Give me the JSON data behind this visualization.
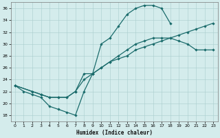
{
  "xlabel": "Humidex (Indice chaleur)",
  "bg_color": "#d4ecec",
  "line_color": "#1a6b6b",
  "xlim": [
    -0.5,
    23.5
  ],
  "ylim": [
    17,
    37
  ],
  "xticks": [
    0,
    1,
    2,
    3,
    4,
    5,
    6,
    7,
    8,
    9,
    10,
    11,
    12,
    13,
    14,
    15,
    16,
    17,
    18,
    19,
    20,
    21,
    22,
    23
  ],
  "yticks": [
    18,
    20,
    22,
    24,
    26,
    28,
    30,
    32,
    34,
    36
  ],
  "curve1_x": [
    0,
    1,
    2,
    3,
    4,
    5,
    6,
    7,
    8,
    9,
    10,
    11,
    12,
    13,
    14,
    15,
    16,
    17,
    18
  ],
  "curve1_y": [
    23,
    22,
    21.5,
    21,
    19.5,
    19,
    18.5,
    18,
    22,
    25,
    30,
    31,
    33,
    35,
    36,
    36.5,
    36.5,
    36,
    33.5
  ],
  "curve2_x": [
    0,
    2,
    3,
    4,
    5,
    6,
    7,
    8,
    9,
    10,
    11,
    12,
    13,
    14,
    15,
    16,
    17,
    18,
    19,
    20,
    21,
    22,
    23
  ],
  "curve2_y": [
    23,
    22,
    21.5,
    21,
    21,
    21,
    22,
    25,
    25,
    26,
    27,
    28,
    29,
    30,
    30.5,
    31,
    31,
    31,
    30.5,
    30,
    29,
    29,
    29
  ],
  "curve3_x": [
    0,
    2,
    3,
    4,
    5,
    6,
    7,
    8,
    9,
    10,
    11,
    12,
    13,
    14,
    15,
    16,
    17,
    18,
    19,
    20,
    21,
    22,
    23
  ],
  "curve3_y": [
    23,
    22,
    21.5,
    21,
    21,
    21,
    22,
    24,
    25,
    26,
    27,
    27.5,
    28,
    29,
    29.5,
    30,
    30.5,
    31,
    31.5,
    32,
    32.5,
    33,
    33.5
  ]
}
